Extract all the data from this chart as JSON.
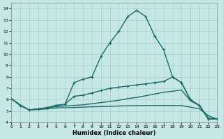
{
  "xlabel": "Humidex (Indice chaleur)",
  "xlim": [
    0,
    23
  ],
  "ylim": [
    4,
    14.5
  ],
  "yticks": [
    4,
    5,
    6,
    7,
    8,
    9,
    10,
    11,
    12,
    13,
    14
  ],
  "xticks": [
    0,
    1,
    2,
    3,
    4,
    5,
    6,
    7,
    8,
    9,
    10,
    11,
    12,
    13,
    14,
    15,
    16,
    17,
    18,
    19,
    20,
    21,
    22,
    23
  ],
  "background_color": "#c5e8e5",
  "line_color": "#1a6b6b",
  "grid_color": "#a8cece",
  "series": [
    {
      "x": [
        0,
        1,
        2,
        3,
        4,
        5,
        6,
        7,
        8,
        9,
        10,
        11,
        12,
        13,
        14,
        15,
        16,
        17,
        18,
        19,
        20,
        21,
        22,
        23
      ],
      "y": [
        6.1,
        5.5,
        5.1,
        5.2,
        5.3,
        5.5,
        5.6,
        7.5,
        7.8,
        8.0,
        9.8,
        11.0,
        12.0,
        13.3,
        13.85,
        13.3,
        11.6,
        10.4,
        8.0,
        7.5,
        6.0,
        5.5,
        4.3,
        4.3
      ],
      "marker": "+",
      "markersize": 3.5,
      "lw": 1.0
    },
    {
      "x": [
        0,
        1,
        2,
        3,
        4,
        5,
        6,
        7,
        8,
        9,
        10,
        11,
        12,
        13,
        14,
        15,
        16,
        17,
        18,
        19,
        20,
        21,
        22,
        23
      ],
      "y": [
        6.1,
        5.5,
        5.1,
        5.2,
        5.3,
        5.5,
        5.6,
        6.3,
        6.4,
        6.6,
        6.8,
        7.0,
        7.1,
        7.2,
        7.3,
        7.4,
        7.5,
        7.6,
        8.0,
        7.5,
        6.0,
        5.5,
        4.3,
        4.3
      ],
      "marker": "+",
      "markersize": 3.5,
      "lw": 1.0
    },
    {
      "x": [
        0,
        1,
        2,
        3,
        4,
        5,
        6,
        7,
        8,
        9,
        10,
        11,
        12,
        13,
        14,
        15,
        16,
        17,
        18,
        19,
        20,
        21,
        22,
        23
      ],
      "y": [
        6.1,
        5.55,
        5.1,
        5.2,
        5.3,
        5.4,
        5.45,
        5.5,
        5.55,
        5.65,
        5.75,
        5.85,
        5.95,
        6.1,
        6.2,
        6.35,
        6.5,
        6.65,
        6.75,
        6.85,
        5.9,
        5.5,
        4.4,
        4.3
      ],
      "marker": null,
      "markersize": 0,
      "lw": 1.0
    },
    {
      "x": [
        0,
        1,
        2,
        3,
        4,
        5,
        6,
        7,
        8,
        9,
        10,
        11,
        12,
        13,
        14,
        15,
        16,
        17,
        18,
        19,
        20,
        21,
        22,
        23
      ],
      "y": [
        6.1,
        5.5,
        5.1,
        5.15,
        5.2,
        5.28,
        5.3,
        5.32,
        5.35,
        5.38,
        5.4,
        5.42,
        5.45,
        5.47,
        5.48,
        5.5,
        5.5,
        5.5,
        5.5,
        5.48,
        5.35,
        5.2,
        4.6,
        4.3
      ],
      "marker": null,
      "markersize": 0,
      "lw": 1.0
    }
  ]
}
